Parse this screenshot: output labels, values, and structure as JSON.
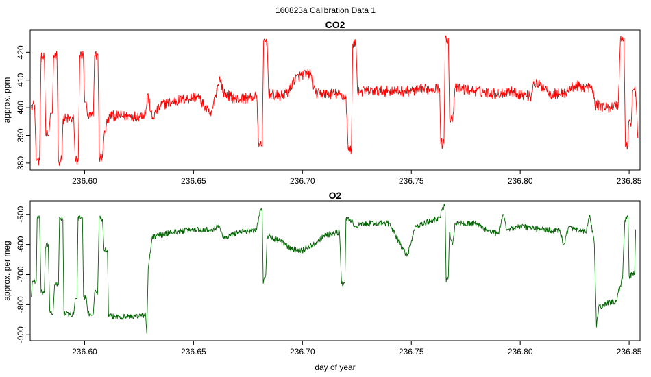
{
  "page": {
    "title": "160823a   Calibration Data 1"
  },
  "chart_data": [
    {
      "type": "line",
      "title": "CO2",
      "xlabel": "",
      "ylabel": "approx. ppm",
      "xlim": [
        236.575,
        236.855
      ],
      "ylim": [
        377.5,
        428
      ],
      "xticks": [
        236.6,
        236.65,
        236.7,
        236.75,
        236.8,
        236.85
      ],
      "xtick_labels": [
        "236.60",
        "236.65",
        "236.70",
        "236.75",
        "236.80",
        "236.85"
      ],
      "yticks": [
        380,
        390,
        400,
        410,
        420
      ],
      "ytick_labels": [
        "380",
        "390",
        "400",
        "410",
        "420"
      ],
      "color": "#ff0000",
      "noise": 1.2,
      "series": [
        {
          "values": [
            [
              236.5755,
              401
            ],
            [
              236.577,
              401
            ],
            [
              236.5778,
              381
            ],
            [
              236.5793,
              381
            ],
            [
              236.58,
              418
            ],
            [
              236.5815,
              418
            ],
            [
              236.5822,
              390
            ],
            [
              236.5836,
              390
            ],
            [
              236.5843,
              398
            ],
            [
              236.5852,
              398
            ],
            [
              236.5858,
              419
            ],
            [
              236.5873,
              419
            ],
            [
              236.588,
              381
            ],
            [
              236.5895,
              381
            ],
            [
              236.5901,
              396
            ],
            [
              236.595,
              396
            ],
            [
              236.5957,
              381
            ],
            [
              236.5971,
              381
            ],
            [
              236.5978,
              419
            ],
            [
              236.5994,
              419
            ],
            [
              236.6,
              402
            ],
            [
              236.6008,
              402
            ],
            [
              236.6013,
              397
            ],
            [
              236.604,
              397
            ],
            [
              236.6046,
              419
            ],
            [
              236.6061,
              419
            ],
            [
              236.6068,
              382
            ],
            [
              236.6082,
              382
            ],
            [
              236.6089,
              390
            ],
            [
              236.61,
              394
            ],
            [
              236.6115,
              397
            ],
            [
              236.62,
              397
            ],
            [
              236.625,
              397
            ],
            [
              236.628,
              398
            ],
            [
              236.629,
              405
            ],
            [
              236.631,
              396
            ],
            [
              236.635,
              401
            ],
            [
              236.645,
              403
            ],
            [
              236.652,
              404
            ],
            [
              236.658,
              397
            ],
            [
              236.66,
              404
            ],
            [
              236.662,
              411
            ],
            [
              236.664,
              405
            ],
            [
              236.67,
              403
            ],
            [
              236.679,
              404
            ],
            [
              236.68,
              386
            ],
            [
              236.6815,
              386
            ],
            [
              236.6822,
              424
            ],
            [
              236.6838,
              424
            ],
            [
              236.6845,
              405
            ],
            [
              236.69,
              404
            ],
            [
              236.694,
              406
            ],
            [
              236.696,
              410
            ],
            [
              236.7,
              412
            ],
            [
              236.704,
              412
            ],
            [
              236.706,
              405
            ],
            [
              236.71,
              405
            ],
            [
              236.715,
              405
            ],
            [
              236.72,
              404
            ],
            [
              236.721,
              385
            ],
            [
              236.7225,
              385
            ],
            [
              236.7231,
              423
            ],
            [
              236.7246,
              423
            ],
            [
              236.7253,
              406
            ],
            [
              236.73,
              406
            ],
            [
              236.74,
              406
            ],
            [
              236.75,
              406
            ],
            [
              236.76,
              407
            ],
            [
              236.763,
              407
            ],
            [
              236.7635,
              387
            ],
            [
              236.765,
              387
            ],
            [
              236.7656,
              425
            ],
            [
              236.767,
              425
            ],
            [
              236.7676,
              396
            ],
            [
              236.769,
              396
            ],
            [
              236.77,
              407
            ],
            [
              236.78,
              406
            ],
            [
              236.79,
              405
            ],
            [
              236.795,
              406
            ],
            [
              236.8,
              405
            ],
            [
              236.805,
              404
            ],
            [
              236.806,
              409
            ],
            [
              236.812,
              407
            ],
            [
              236.814,
              405
            ],
            [
              236.82,
              405
            ],
            [
              236.825,
              408
            ],
            [
              236.833,
              407
            ],
            [
              236.8345,
              401
            ],
            [
              236.84,
              400
            ],
            [
              236.845,
              401
            ],
            [
              236.846,
              425
            ],
            [
              236.8476,
              425
            ],
            [
              236.8483,
              386
            ],
            [
              236.8493,
              386
            ],
            [
              236.8498,
              395
            ],
            [
              236.851,
              395
            ],
            [
              236.8516,
              406
            ],
            [
              236.853,
              406
            ],
            [
              236.854,
              389
            ]
          ]
        }
      ]
    },
    {
      "type": "line",
      "title": "O2",
      "xlabel": "day of year",
      "ylabel": "approx. per meg",
      "xlim": [
        236.575,
        236.855
      ],
      "ylim": [
        -920,
        -455
      ],
      "xticks": [
        236.6,
        236.65,
        236.7,
        236.75,
        236.8,
        236.85
      ],
      "xtick_labels": [
        "236.60",
        "236.65",
        "236.70",
        "236.75",
        "236.80",
        "236.85"
      ],
      "yticks": [
        -900,
        -800,
        -700,
        -600,
        -500
      ],
      "ytick_labels": [
        "-900",
        "-800",
        "-700",
        "-600",
        "-500"
      ],
      "color": "#006400",
      "noise": 6,
      "series": [
        {
          "values": [
            [
              236.5755,
              -775
            ],
            [
              236.576,
              -722
            ],
            [
              236.5778,
              -722
            ],
            [
              236.5782,
              -515
            ],
            [
              236.5793,
              -510
            ],
            [
              236.58,
              -760
            ],
            [
              236.5815,
              -760
            ],
            [
              236.582,
              -610
            ],
            [
              236.5833,
              -600
            ],
            [
              236.584,
              -820
            ],
            [
              236.5855,
              -830
            ],
            [
              236.5862,
              -735
            ],
            [
              236.588,
              -735
            ],
            [
              236.5885,
              -510
            ],
            [
              236.59,
              -515
            ],
            [
              236.5905,
              -830
            ],
            [
              236.595,
              -832
            ],
            [
              236.5957,
              -780
            ],
            [
              236.5965,
              -780
            ],
            [
              236.597,
              -512
            ],
            [
              236.599,
              -512
            ],
            [
              236.5995,
              -775
            ],
            [
              236.6008,
              -778
            ],
            [
              236.6015,
              -830
            ],
            [
              236.604,
              -830
            ],
            [
              236.6046,
              -760
            ],
            [
              236.606,
              -760
            ],
            [
              236.6067,
              -510
            ],
            [
              236.6082,
              -515
            ],
            [
              236.6089,
              -620
            ],
            [
              236.6105,
              -620
            ],
            [
              236.611,
              -840
            ],
            [
              236.62,
              -840
            ],
            [
              236.628,
              -835
            ],
            [
              236.6285,
              -895
            ],
            [
              236.6292,
              -680
            ],
            [
              236.631,
              -575
            ],
            [
              236.64,
              -560
            ],
            [
              236.65,
              -550
            ],
            [
              236.658,
              -550
            ],
            [
              236.662,
              -540
            ],
            [
              236.664,
              -580
            ],
            [
              236.67,
              -560
            ],
            [
              236.679,
              -550
            ],
            [
              236.6805,
              -485
            ],
            [
              236.6815,
              -485
            ],
            [
              236.682,
              -730
            ],
            [
              236.6832,
              -700
            ],
            [
              236.6838,
              -570
            ],
            [
              236.69,
              -590
            ],
            [
              236.695,
              -615
            ],
            [
              236.7,
              -620
            ],
            [
              236.705,
              -600
            ],
            [
              236.71,
              -570
            ],
            [
              236.717,
              -560
            ],
            [
              236.718,
              -730
            ],
            [
              236.7195,
              -730
            ],
            [
              236.72,
              -515
            ],
            [
              236.7225,
              -520
            ],
            [
              236.7235,
              -540
            ],
            [
              236.73,
              -530
            ],
            [
              236.74,
              -530
            ],
            [
              236.745,
              -600
            ],
            [
              236.748,
              -640
            ],
            [
              236.752,
              -540
            ],
            [
              236.76,
              -520
            ],
            [
              236.763,
              -510
            ],
            [
              236.7645,
              -480
            ],
            [
              236.7655,
              -470
            ],
            [
              236.766,
              -725
            ],
            [
              236.767,
              -705
            ],
            [
              236.7675,
              -560
            ],
            [
              236.769,
              -600
            ],
            [
              236.77,
              -530
            ],
            [
              236.78,
              -530
            ],
            [
              236.785,
              -555
            ],
            [
              236.79,
              -565
            ],
            [
              236.792,
              -500
            ],
            [
              236.794,
              -550
            ],
            [
              236.8,
              -540
            ],
            [
              236.81,
              -550
            ],
            [
              236.818,
              -555
            ],
            [
              236.82,
              -600
            ],
            [
              236.822,
              -545
            ],
            [
              236.83,
              -560
            ],
            [
              236.832,
              -505
            ],
            [
              236.834,
              -600
            ],
            [
              236.835,
              -875
            ],
            [
              236.836,
              -810
            ],
            [
              236.84,
              -795
            ],
            [
              236.844,
              -790
            ],
            [
              236.845,
              -760
            ],
            [
              236.847,
              -710
            ],
            [
              236.848,
              -520
            ],
            [
              236.8495,
              -510
            ],
            [
              236.85,
              -705
            ],
            [
              236.8515,
              -700
            ],
            [
              236.8525,
              -700
            ],
            [
              236.853,
              -550
            ]
          ]
        }
      ]
    }
  ]
}
